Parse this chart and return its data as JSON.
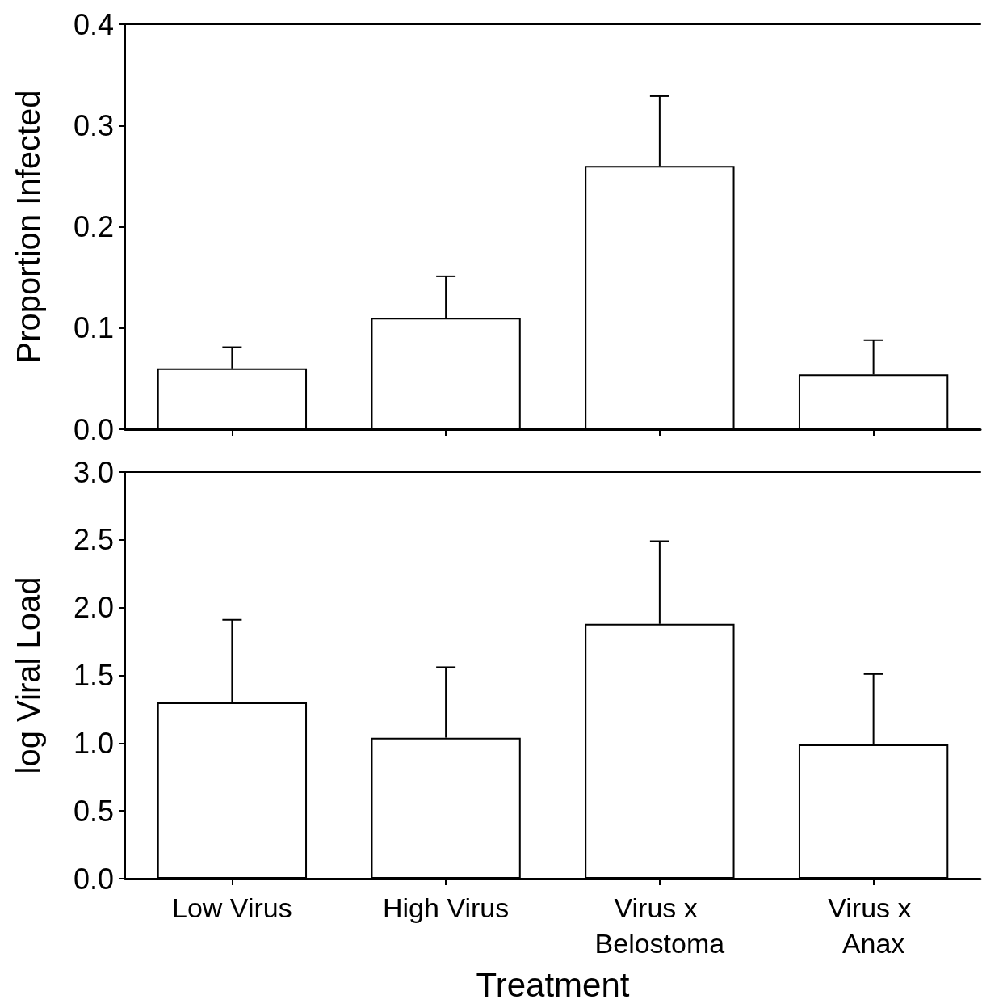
{
  "chart_data": [
    {
      "type": "bar",
      "ylabel": "Proportion Infected",
      "categories": [
        "Low Virus",
        "High Virus",
        "Virus x Belostoma",
        "Virus x Anax"
      ],
      "values": [
        0.06,
        0.11,
        0.26,
        0.054
      ],
      "errors": [
        [
          0.06,
          0.081
        ],
        [
          0.11,
          0.151
        ],
        [
          0.26,
          0.329
        ],
        [
          0.054,
          0.088
        ]
      ],
      "color": "#ffffff",
      "ylim": [
        0,
        0.4
      ],
      "yticks": [
        {
          "value": 0,
          "label": "0.0"
        },
        0.1,
        0.2,
        0.3,
        0.4
      ],
      "tick_labels": "y"
    },
    {
      "type": "bar",
      "xlabel": "Treatment",
      "ylabel": "log Viral Load",
      "categories": [
        "Low Virus",
        "High Virus",
        "Virus x Belostoma",
        "Virus x Anax"
      ],
      "values": [
        1.3,
        1.04,
        1.88,
        0.99
      ],
      "errors": [
        [
          1.3,
          1.91
        ],
        [
          1.04,
          1.56
        ],
        [
          1.88,
          2.49
        ],
        [
          0.99,
          1.51
        ]
      ],
      "color": "#ffffff",
      "ylim": [
        0,
        3.0
      ],
      "yticks": [
        {
          "value": 0,
          "label": "0.0"
        },
        0.5,
        {
          "value": 1,
          "label": "1.0"
        },
        1.5,
        {
          "value": 2,
          "label": "2.0"
        },
        2.5,
        {
          "value": 3,
          "label": "3.0"
        }
      ]
    }
  ]
}
